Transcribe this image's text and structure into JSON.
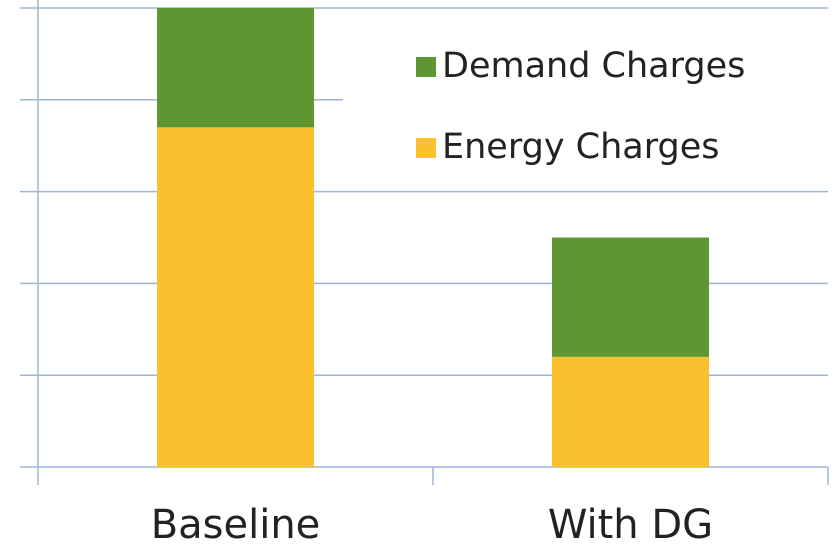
{
  "chart_data": {
    "type": "stacked-bar",
    "categories": [
      "Baseline",
      "With DG"
    ],
    "series": [
      {
        "name": "Energy Charges",
        "color": "#fbc02d",
        "values": [
          3.7,
          1.2
        ]
      },
      {
        "name": "Demand Charges",
        "color": "#5e9732",
        "values": [
          1.3,
          1.3
        ]
      }
    ],
    "ylim": [
      0,
      5
    ],
    "yticks": [
      0,
      1,
      2,
      3,
      4,
      5
    ],
    "grid": true,
    "legend": "upper right"
  }
}
